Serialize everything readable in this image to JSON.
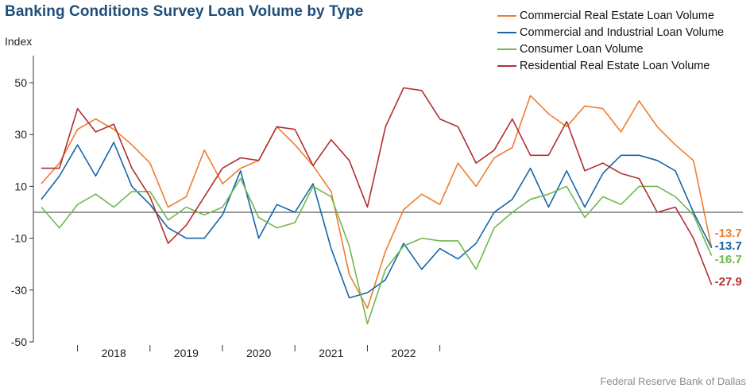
{
  "title": "Banking Conditions Survey Loan Volume by Type",
  "source": "Federal Reserve Bank of Dallas",
  "chart_data": {
    "type": "line",
    "ylabel": "Index",
    "xlabel": "",
    "ylim": [
      -50,
      60
    ],
    "yticks": [
      50,
      30,
      10,
      -10,
      -30,
      -50
    ],
    "ytick_labels": [
      "50",
      "30",
      "10",
      "-10",
      "-30",
      "-50"
    ],
    "x_year_labels": [
      "2018",
      "2019",
      "2020",
      "2021",
      "2022"
    ],
    "x_year_starts": [
      2018,
      2019,
      2020,
      2021,
      2022
    ],
    "x_start": 2017.5,
    "x_step": 0.25,
    "grid": false,
    "legend_position": "top-right",
    "series": [
      {
        "name": "Commercial Real Estate Loan Volume",
        "color": "#ed7d31",
        "end_label": "-13.7",
        "values": [
          11,
          19,
          32,
          36,
          32,
          26,
          19,
          2,
          6,
          24,
          11,
          17,
          20,
          33,
          26,
          18,
          8,
          -24,
          -37,
          -15,
          1,
          7,
          3,
          19,
          10,
          21,
          25,
          45,
          38,
          33,
          41,
          40,
          31,
          43,
          33,
          26,
          20,
          -13.7
        ]
      },
      {
        "name": "Commercial and Industrial Loan Volume",
        "color": "#1565a8",
        "end_label": "-13.7",
        "values": [
          5,
          14,
          26,
          14,
          27,
          10,
          3,
          -6,
          -10,
          -10,
          -1,
          16,
          -10,
          3,
          0,
          11,
          -14,
          -33,
          -31,
          -26,
          -12,
          -22,
          -14,
          -18,
          -12,
          0,
          5,
          17,
          2,
          16,
          2,
          15,
          22,
          22,
          20,
          16,
          0,
          -13.7
        ]
      },
      {
        "name": "Consumer Loan Volume",
        "color": "#70b84f",
        "end_label": "-16.7",
        "values": [
          2,
          -6,
          3,
          7,
          2,
          8,
          8,
          -3,
          2,
          -1,
          2,
          13,
          -2,
          -6,
          -4,
          10,
          6,
          -13,
          -43,
          -22,
          -13,
          -10,
          -11,
          -11,
          -22,
          -6,
          0,
          5,
          7,
          10,
          -2,
          6,
          3,
          10,
          10,
          6,
          -1,
          -16.7
        ]
      },
      {
        "name": "Residential Real Estate Loan Volume",
        "color": "#b22f2f",
        "end_label": "-27.9",
        "values": [
          17,
          17,
          40,
          31,
          34,
          17,
          6,
          -12,
          -5,
          6,
          17,
          21,
          20,
          33,
          32,
          18,
          28,
          20,
          2,
          33,
          48,
          47,
          36,
          33,
          19,
          24,
          36,
          22,
          22,
          35,
          16,
          19,
          15,
          13,
          0,
          2,
          -10,
          -27.9
        ]
      }
    ]
  }
}
